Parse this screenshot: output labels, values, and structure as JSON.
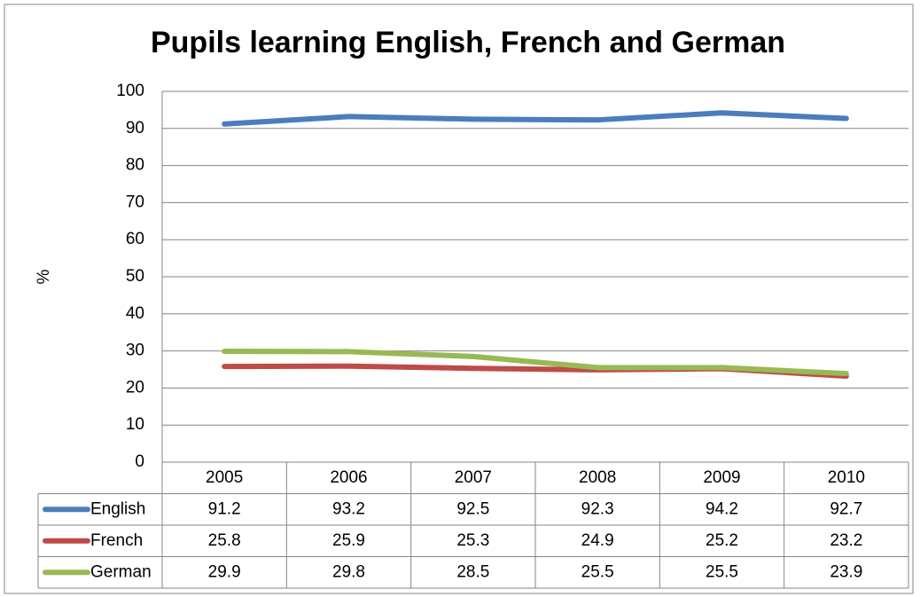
{
  "chart_data": {
    "type": "line",
    "title": "Pupils learning English, French and German",
    "y_label": "%",
    "categories": [
      "2005",
      "2006",
      "2007",
      "2008",
      "2009",
      "2010"
    ],
    "series": [
      {
        "name": "English",
        "color": "#4a7ebb",
        "values": [
          91.2,
          93.2,
          92.5,
          92.3,
          94.2,
          92.7
        ]
      },
      {
        "name": "French",
        "color": "#be4b48",
        "values": [
          25.8,
          25.9,
          25.3,
          24.9,
          25.2,
          23.2
        ]
      },
      {
        "name": "German",
        "color": "#98b954",
        "values": [
          29.9,
          29.8,
          28.5,
          25.5,
          25.5,
          23.9
        ]
      }
    ],
    "ylim": [
      0,
      100
    ],
    "yticks": [
      0,
      10,
      20,
      30,
      40,
      50,
      60,
      70,
      80,
      90,
      100
    ],
    "grid": true,
    "legend": "data-table"
  }
}
